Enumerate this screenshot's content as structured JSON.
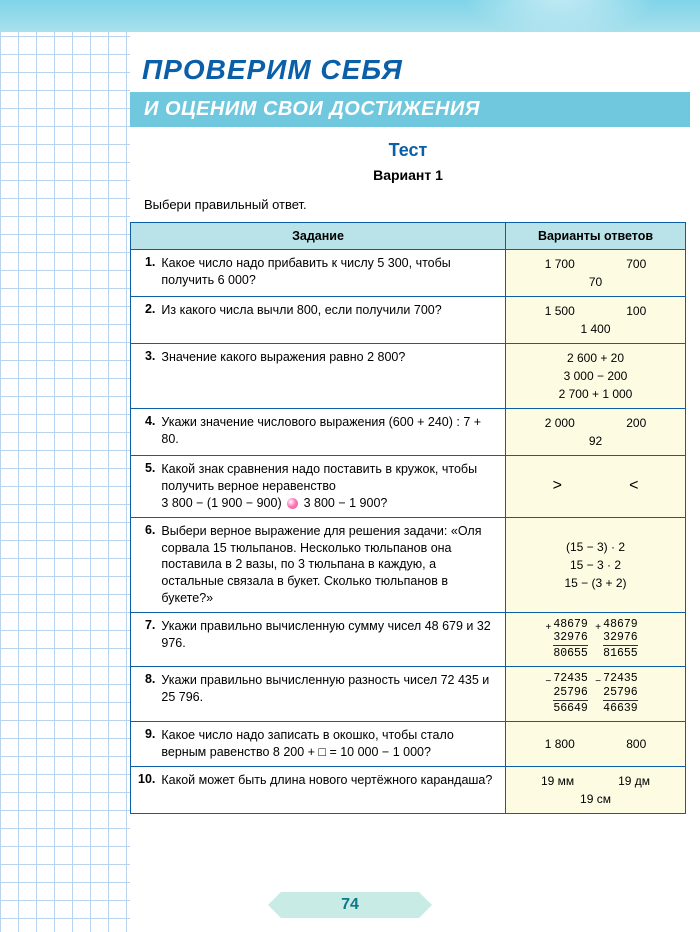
{
  "header": {
    "title1": "ПРОВЕРИМ СЕБЯ",
    "title2": "И ОЦЕНИМ СВОИ ДОСТИЖЕНИЯ"
  },
  "test": {
    "label": "Тест",
    "variant": "Вариант  1",
    "instruction": "Выбери правильный ответ."
  },
  "table": {
    "col_task": "Задание",
    "col_answers": "Варианты  ответов"
  },
  "rows": {
    "r1": {
      "n": "1.",
      "task": "Какое число надо прибавить к числу 5 300, чтобы получить 6 000?",
      "a1": "1 700",
      "a2": "700",
      "a3": "70"
    },
    "r2": {
      "n": "2.",
      "task": "Из какого числа вычли 800, если получили 700?",
      "a1": "1 500",
      "a2": "100",
      "a3": "1 400"
    },
    "r3": {
      "n": "3.",
      "task": "Значение какого выражения равно 2 800?",
      "a1": "2 600 + 20",
      "a2": "3 000 − 200",
      "a3": "2 700 + 1 000"
    },
    "r4": {
      "n": "4.",
      "task": "Укажи значение числового выражения  (600 + 240) : 7 + 80.",
      "a1": "2 000",
      "a2": "200",
      "a3": "92"
    },
    "r5": {
      "n": "5.",
      "task_l1": "Какой знак сравнения надо поставить в кружок, чтобы получить верное неравенство",
      "task_l2a": "3 800 − (1 900 − 900)",
      "task_l2b": "3 800 − 1 900?",
      "a1": ">",
      "a2": "<"
    },
    "r6": {
      "n": "6.",
      "task": "Выбери верное выражение для решения задачи: «Оля сорвала 15 тюльпанов. Несколько тюльпанов она поставила в 2 вазы, по 3 тюльпана в каждую, а остальные связала в букет. Сколько тюльпанов в букете?»",
      "a1": "(15 − 3) · 2",
      "a2": "15 − 3 · 2",
      "a3": "15 − (3 + 2)"
    },
    "r7": {
      "n": "7.",
      "task": "Укажи правильно вычисленную сумму чисел 48 679 и 32 976.",
      "c1_1": "48679",
      "c1_2": "32976",
      "c1_r": "80655",
      "c2_1": "48679",
      "c2_2": "32976",
      "c2_r": "81655",
      "op": "+"
    },
    "r8": {
      "n": "8.",
      "task": "Укажи правильно вычисленную разность чисел 72 435 и 25 796.",
      "c1_1": "72435",
      "c1_2": "25796",
      "c1_r": "56649",
      "c2_1": "72435",
      "c2_2": "25796",
      "c2_r": "46639",
      "op": "−"
    },
    "r9": {
      "n": "9.",
      "task": "Какое число надо записать в окошко, чтобы стало верным равенство  8 200 + □ = 10 000 − 1 000?",
      "a1": "1 800",
      "a2": "800"
    },
    "r10": {
      "n": "10.",
      "task": "Какой может быть длина нового чертёжного карандаша?",
      "a1": "19 мм",
      "a2": "19 дм",
      "a3": "19 см"
    }
  },
  "page_number": "74",
  "colors": {
    "primary_blue": "#0a5fa8",
    "header_teal": "#6fc8de",
    "table_header_bg": "#b9e3e8",
    "answer_bg": "#fdfce3",
    "grid_line": "#b8d4f0",
    "page_badge": "#c8ebe6"
  }
}
